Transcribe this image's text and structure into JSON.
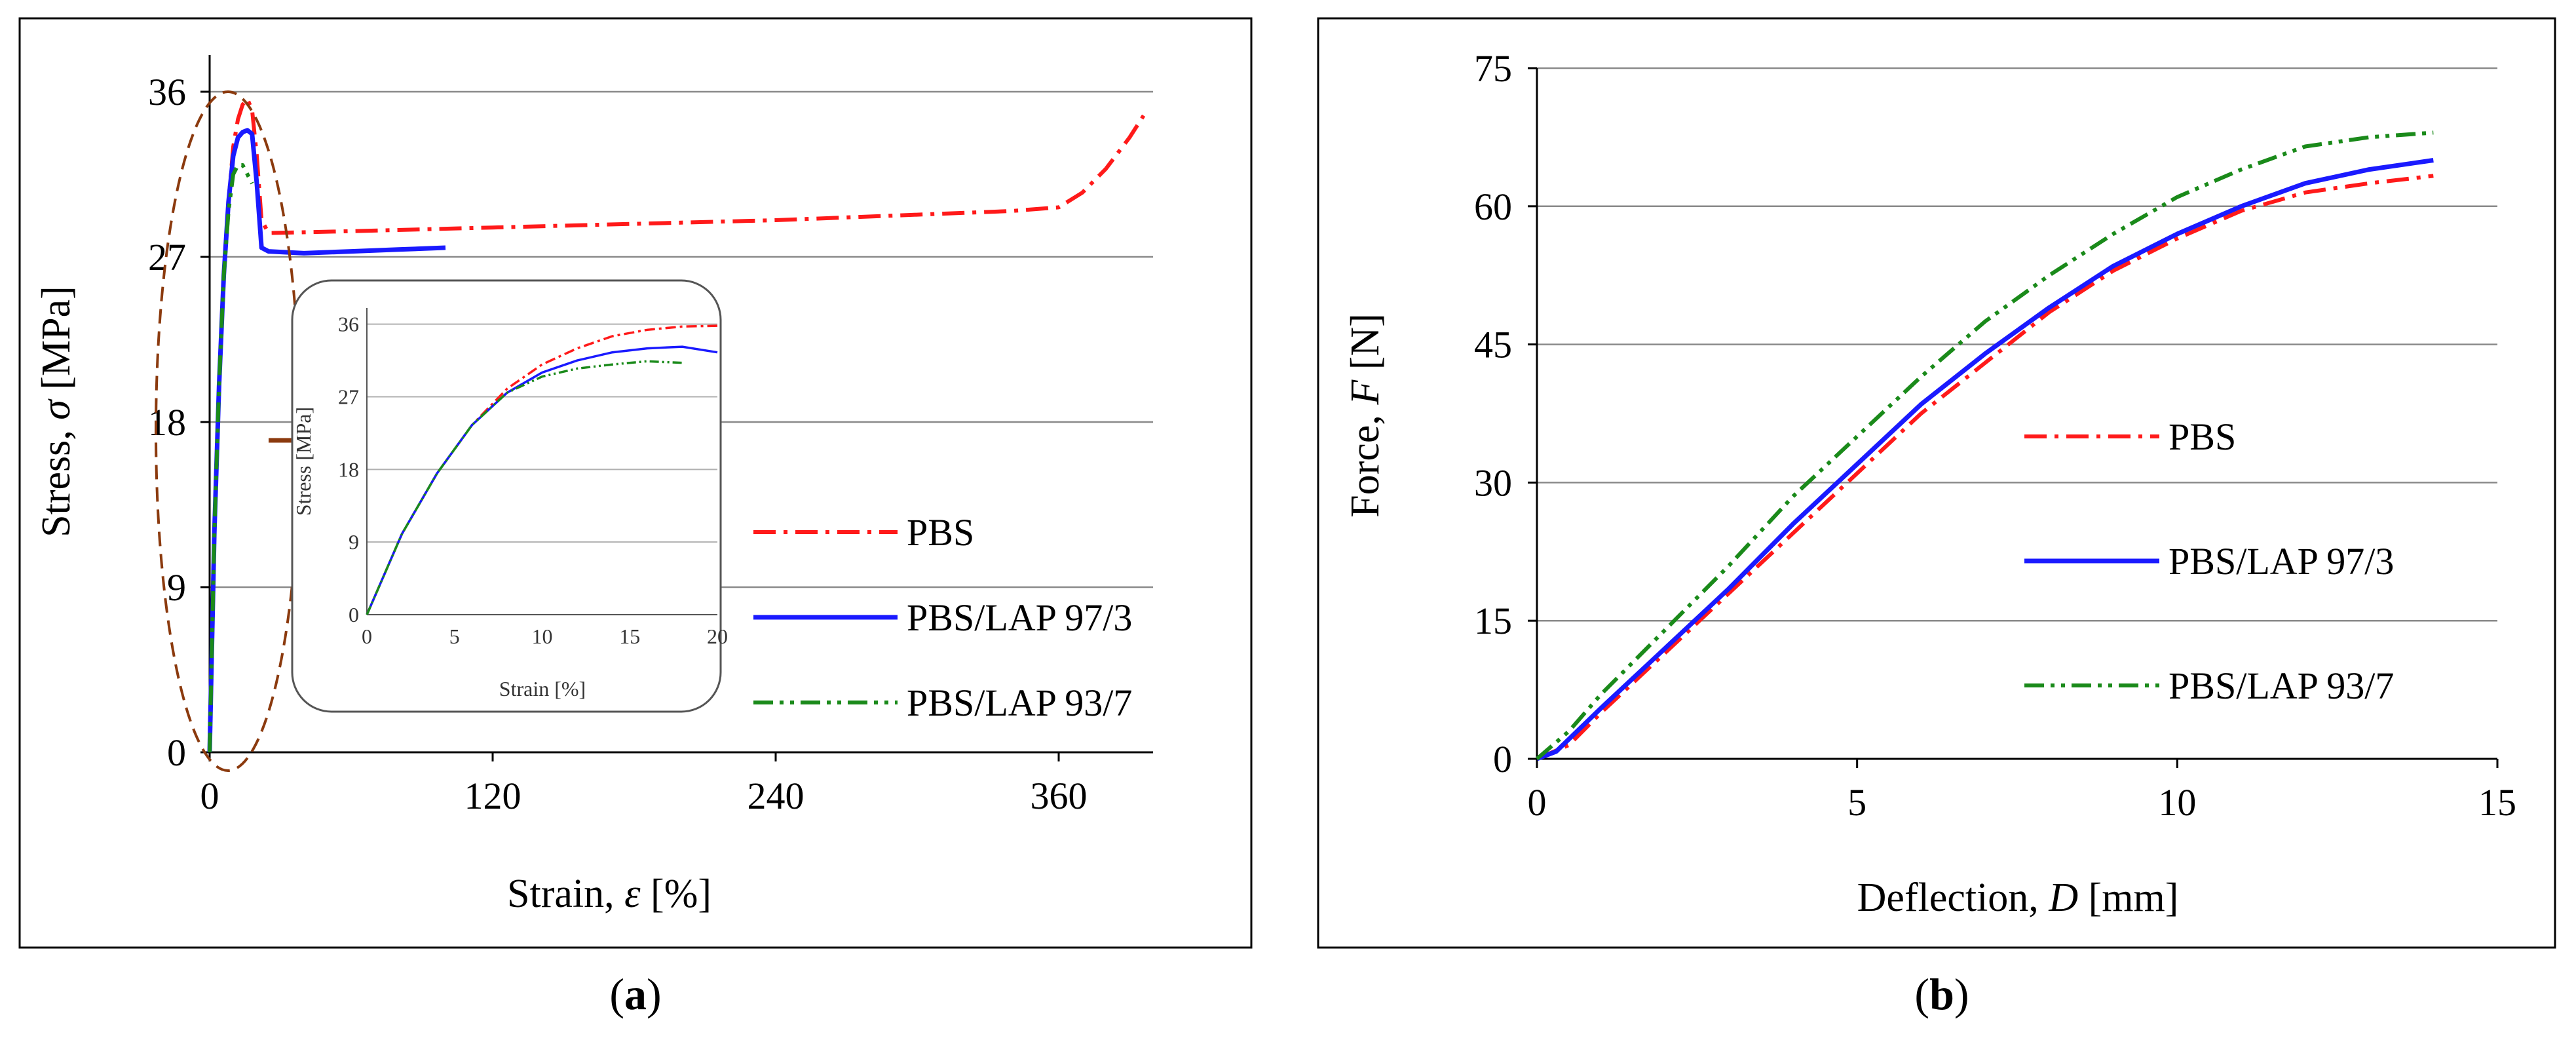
{
  "colors": {
    "pbs": "#ff1a1a",
    "lap3": "#1a1aff",
    "lap7": "#1a8a1a",
    "callout": "#8b3a0e"
  },
  "chart_data": [
    {
      "type": "line",
      "panel_label": "a",
      "xlabel_text": "Strain, ",
      "xlabel_symbol": "ε",
      "xlabel_unit": " [%]",
      "ylabel_text": "Stress, ",
      "ylabel_symbol": "σ",
      "ylabel_unit": " [MPa]",
      "xlim": [
        0,
        400
      ],
      "ylim": [
        0,
        38
      ],
      "x_ticks": [
        0,
        120,
        240,
        360
      ],
      "y_ticks": [
        0,
        9,
        18,
        27,
        36
      ],
      "grid": "horizontal",
      "legend_placement": "lower-right",
      "series": [
        {
          "name": "PBS",
          "style": "dash-dot",
          "x": [
            0,
            2,
            4,
            6,
            8,
            10,
            12,
            14,
            16,
            18,
            20,
            22,
            25,
            60,
            120,
            180,
            240,
            300,
            340,
            360,
            370,
            380,
            390,
            396
          ],
          "y": [
            0,
            12,
            20,
            26,
            30,
            33,
            34.5,
            35.3,
            35.6,
            35,
            32.5,
            29,
            28.3,
            28.4,
            28.6,
            28.8,
            29,
            29.3,
            29.5,
            29.7,
            30.5,
            31.8,
            33.5,
            34.7
          ]
        },
        {
          "name": "PBS/LAP 97/3",
          "style": "solid",
          "x": [
            0,
            2,
            4,
            6,
            8,
            10,
            12,
            14,
            16,
            18,
            20,
            22,
            25,
            40,
            60,
            80,
            100
          ],
          "y": [
            0,
            12,
            20,
            26,
            30,
            32.5,
            33.5,
            33.8,
            33.9,
            33.7,
            31,
            27.5,
            27.3,
            27.2,
            27.3,
            27.4,
            27.5
          ]
        },
        {
          "name": "PBS/LAP 93/7",
          "style": "dash-dot-dot",
          "x": [
            0,
            2,
            4,
            6,
            8,
            10,
            12,
            14,
            16,
            18
          ],
          "y": [
            0,
            12,
            20,
            26,
            29.5,
            31.5,
            32,
            32,
            31.5,
            31
          ]
        }
      ],
      "inset": {
        "xlabel": "Strain [%]",
        "ylabel": "Stress [MPa]",
        "xlim": [
          0,
          20
        ],
        "ylim": [
          0,
          38
        ],
        "x_ticks": [
          0,
          5,
          10,
          15,
          20
        ],
        "y_ticks": [
          0,
          9,
          18,
          27,
          36
        ],
        "series": [
          {
            "name": "PBS",
            "x": [
              0,
              2,
              4,
              6,
              8,
              10,
              12,
              14,
              16,
              18,
              20
            ],
            "y": [
              0,
              10,
              17.5,
              23.5,
              28,
              31,
              33,
              34.5,
              35.3,
              35.7,
              35.8
            ]
          },
          {
            "name": "PBS/LAP 97/3",
            "x": [
              0,
              2,
              4,
              6,
              8,
              10,
              12,
              14,
              16,
              18,
              20
            ],
            "y": [
              0,
              10,
              17.5,
              23.5,
              27.5,
              30,
              31.5,
              32.5,
              33,
              33.2,
              32.5
            ]
          },
          {
            "name": "PBS/LAP 93/7",
            "x": [
              0,
              2,
              4,
              6,
              8,
              10,
              12,
              14,
              16,
              18
            ],
            "y": [
              0,
              10,
              17.5,
              23.5,
              27.5,
              29.5,
              30.5,
              31,
              31.4,
              31.2
            ]
          }
        ]
      }
    },
    {
      "type": "line",
      "panel_label": "b",
      "xlabel_text": "Deflection, ",
      "xlabel_symbol": "D",
      "xlabel_unit": " [mm]",
      "ylabel_text": "Force, ",
      "ylabel_symbol": "F",
      "ylabel_unit": " [N]",
      "xlim": [
        0,
        15
      ],
      "ylim": [
        0,
        75
      ],
      "x_ticks": [
        0,
        5,
        10,
        15
      ],
      "y_ticks": [
        0,
        15,
        30,
        45,
        60,
        75
      ],
      "grid": "horizontal",
      "legend_placement": "center-right",
      "series": [
        {
          "name": "PBS",
          "style": "dash-dot",
          "x": [
            0,
            0.5,
            1,
            2,
            3,
            4,
            5,
            6,
            7,
            8,
            9,
            10,
            11,
            12,
            13,
            14
          ],
          "y": [
            0,
            1.5,
            5,
            11.5,
            18,
            24.5,
            31,
            37.5,
            43,
            48.5,
            53,
            56.5,
            59.5,
            61.5,
            62.5,
            63.3
          ]
        },
        {
          "name": "PBS/LAP 97/3",
          "style": "solid",
          "x": [
            0,
            0.3,
            1,
            2,
            3,
            4,
            5,
            6,
            7,
            8,
            9,
            10,
            11,
            12,
            13,
            14
          ],
          "y": [
            0,
            0.8,
            5.5,
            12,
            18.5,
            25.5,
            32,
            38.5,
            44,
            49,
            53.5,
            57,
            60,
            62.5,
            64,
            65
          ]
        },
        {
          "name": "PBS/LAP 93/7",
          "style": "dash-dot-dot",
          "x": [
            0,
            0.5,
            1,
            2,
            3,
            4,
            5,
            6,
            7,
            8,
            9,
            10,
            11,
            12,
            13,
            14
          ],
          "y": [
            0,
            3,
            7,
            14,
            21,
            28.5,
            35,
            41.5,
            47.5,
            52.5,
            57,
            61,
            64,
            66.5,
            67.5,
            68
          ]
        }
      ]
    }
  ]
}
